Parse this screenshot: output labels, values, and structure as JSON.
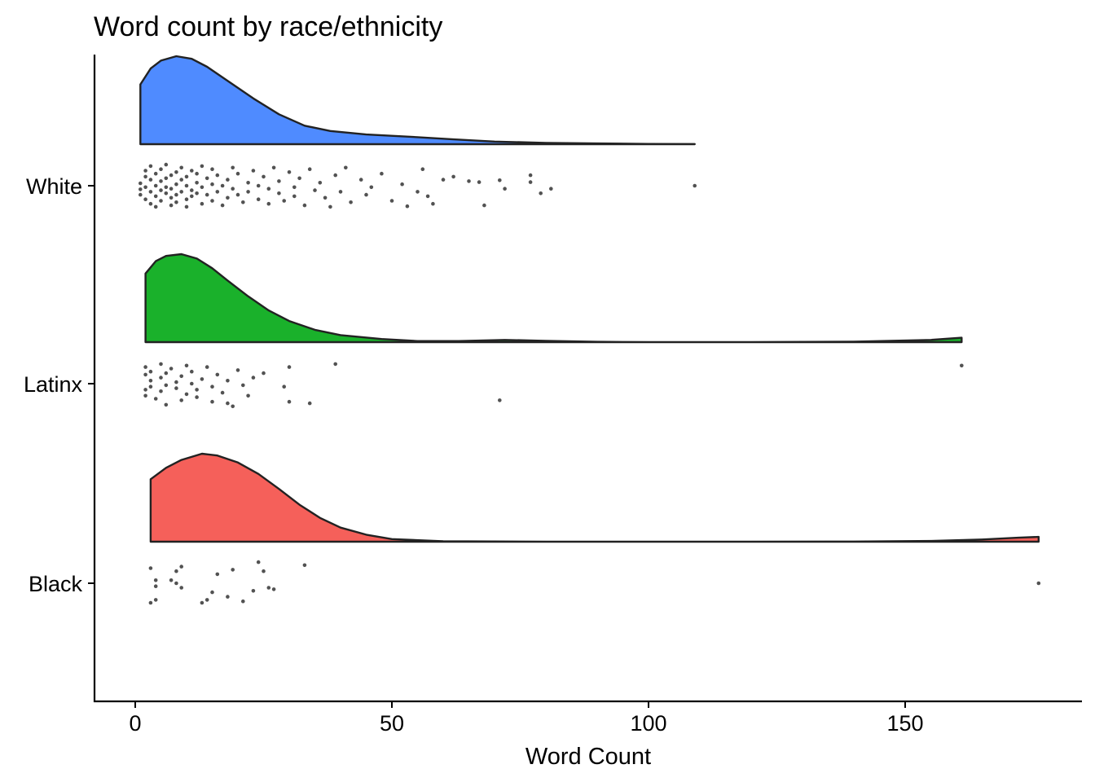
{
  "chart_data": {
    "type": "raincloud",
    "title": "Word count by race/ethnicity",
    "xlabel": "Word Count",
    "ylabel": "",
    "xlim": [
      -8,
      185
    ],
    "xticks": [
      0,
      50,
      100,
      150
    ],
    "tick_labels": [
      "0",
      "50",
      "100",
      "150"
    ],
    "categories": [
      "White",
      "Latinx",
      "Black"
    ],
    "colors": {
      "White": "#4F8BFF",
      "Latinx": "#1AB12B",
      "Black": "#F5605A"
    },
    "grid": false,
    "legend": "none",
    "density": {
      "White": {
        "x": [
          1,
          3,
          5,
          8,
          11,
          14,
          18,
          23,
          28,
          33,
          38,
          45,
          55,
          62,
          70,
          80,
          90,
          100,
          109
        ],
        "y": [
          0.68,
          0.86,
          0.95,
          1.0,
          0.97,
          0.88,
          0.72,
          0.52,
          0.34,
          0.21,
          0.15,
          0.11,
          0.08,
          0.055,
          0.03,
          0.015,
          0.008,
          0.003,
          0.002
        ]
      },
      "Latinx": {
        "x": [
          2,
          4,
          6,
          9,
          12,
          15,
          18,
          22,
          26,
          30,
          35,
          40,
          48,
          55,
          63,
          72,
          80,
          90,
          100,
          120,
          140,
          155,
          161
        ],
        "y": [
          0.78,
          0.92,
          0.98,
          1.0,
          0.95,
          0.84,
          0.7,
          0.52,
          0.36,
          0.24,
          0.14,
          0.08,
          0.035,
          0.012,
          0.012,
          0.025,
          0.015,
          0.004,
          0.0,
          0.0,
          0.005,
          0.025,
          0.05
        ]
      },
      "Black": {
        "x": [
          3,
          6,
          9,
          13,
          16,
          20,
          24,
          28,
          32,
          36,
          40,
          45,
          50,
          60,
          80,
          100,
          120,
          140,
          155,
          165,
          172,
          176
        ],
        "y": [
          0.71,
          0.84,
          0.93,
          1.0,
          0.98,
          0.9,
          0.77,
          0.6,
          0.42,
          0.27,
          0.16,
          0.08,
          0.03,
          0.005,
          0.0,
          0.0,
          0.0,
          0.002,
          0.008,
          0.025,
          0.045,
          0.055
        ]
      }
    },
    "points": {
      "White": [
        [
          1,
          0.12
        ],
        [
          1,
          -0.08
        ],
        [
          1,
          0.3
        ],
        [
          2,
          -0.3
        ],
        [
          2,
          0.05
        ],
        [
          2,
          -0.5
        ],
        [
          2,
          0.45
        ],
        [
          3,
          0.2
        ],
        [
          3,
          -0.2
        ],
        [
          3,
          0.6
        ],
        [
          3,
          -0.65
        ],
        [
          4,
          0.0
        ],
        [
          4,
          0.35
        ],
        [
          4,
          -0.4
        ],
        [
          4,
          0.7
        ],
        [
          5,
          0.15
        ],
        [
          5,
          -0.15
        ],
        [
          5,
          -0.55
        ],
        [
          5,
          0.5
        ],
        [
          6,
          0.25
        ],
        [
          6,
          -0.25
        ],
        [
          6,
          0.05
        ],
        [
          6,
          -0.7
        ],
        [
          7,
          0.4
        ],
        [
          7,
          -0.35
        ],
        [
          7,
          0.1
        ],
        [
          7,
          0.65
        ],
        [
          8,
          -0.05
        ],
        [
          8,
          0.3
        ],
        [
          8,
          -0.45
        ],
        [
          8,
          0.55
        ],
        [
          9,
          0.2
        ],
        [
          9,
          -0.2
        ],
        [
          9,
          -0.6
        ],
        [
          10,
          0.0
        ],
        [
          10,
          0.45
        ],
        [
          10,
          -0.3
        ],
        [
          10,
          0.7
        ],
        [
          11,
          0.15
        ],
        [
          11,
          -0.5
        ],
        [
          11,
          0.35
        ],
        [
          12,
          -0.1
        ],
        [
          12,
          0.25
        ],
        [
          12,
          -0.4
        ],
        [
          13,
          0.6
        ],
        [
          13,
          0.05
        ],
        [
          13,
          -0.65
        ],
        [
          14,
          0.3
        ],
        [
          14,
          -0.25
        ],
        [
          15,
          0.5
        ],
        [
          15,
          -0.05
        ],
        [
          15,
          -0.55
        ],
        [
          16,
          0.2
        ],
        [
          16,
          -0.35
        ],
        [
          17,
          0.65
        ],
        [
          17,
          0.0
        ],
        [
          18,
          -0.2
        ],
        [
          18,
          0.4
        ],
        [
          19,
          -0.6
        ],
        [
          19,
          0.1
        ],
        [
          20,
          0.3
        ],
        [
          20,
          -0.4
        ],
        [
          21,
          0.55
        ],
        [
          22,
          -0.1
        ],
        [
          22,
          0.2
        ],
        [
          23,
          -0.5
        ],
        [
          24,
          0.45
        ],
        [
          24,
          0.0
        ],
        [
          25,
          -0.3
        ],
        [
          26,
          0.6
        ],
        [
          26,
          0.1
        ],
        [
          27,
          -0.6
        ],
        [
          28,
          0.25
        ],
        [
          28,
          -0.15
        ],
        [
          29,
          0.5
        ],
        [
          30,
          -0.45
        ],
        [
          31,
          0.05
        ],
        [
          31,
          0.35
        ],
        [
          32,
          -0.25
        ],
        [
          33,
          0.65
        ],
        [
          34,
          -0.55
        ],
        [
          35,
          0.15
        ],
        [
          36,
          -0.1
        ],
        [
          37,
          0.4
        ],
        [
          38,
          0.7
        ],
        [
          39,
          -0.35
        ],
        [
          40,
          0.2
        ],
        [
          41,
          -0.6
        ],
        [
          42,
          0.55
        ],
        [
          44,
          -0.2
        ],
        [
          45,
          0.3
        ],
        [
          46,
          0.05
        ],
        [
          48,
          -0.4
        ],
        [
          50,
          0.5
        ],
        [
          52,
          -0.05
        ],
        [
          53,
          0.68
        ],
        [
          55,
          0.2
        ],
        [
          56,
          -0.55
        ],
        [
          57,
          0.35
        ],
        [
          58,
          0.6
        ],
        [
          60,
          -0.2
        ],
        [
          62,
          -0.3
        ],
        [
          65,
          -0.15
        ],
        [
          67,
          -0.12
        ],
        [
          68,
          0.65
        ],
        [
          71,
          -0.18
        ],
        [
          72,
          0.1
        ],
        [
          77,
          -0.35
        ],
        [
          77,
          -0.12
        ],
        [
          79,
          0.25
        ],
        [
          81,
          0.1
        ],
        [
          109,
          0.0
        ]
      ],
      "Latinx": [
        [
          2,
          0.4
        ],
        [
          2,
          0.2
        ],
        [
          2,
          -0.3
        ],
        [
          2,
          -0.55
        ],
        [
          3,
          0.1
        ],
        [
          3,
          -0.1
        ],
        [
          3,
          -0.4
        ],
        [
          4,
          0.5
        ],
        [
          5,
          0.25
        ],
        [
          5,
          -0.2
        ],
        [
          5,
          -0.65
        ],
        [
          6,
          0.05
        ],
        [
          6,
          -0.35
        ],
        [
          6,
          0.7
        ],
        [
          7,
          -0.5
        ],
        [
          8,
          0.15
        ],
        [
          8,
          -0.05
        ],
        [
          9,
          0.55
        ],
        [
          9,
          -0.25
        ],
        [
          10,
          -0.6
        ],
        [
          10,
          0.35
        ],
        [
          11,
          0.0
        ],
        [
          11,
          -0.4
        ],
        [
          12,
          0.45
        ],
        [
          12,
          0.2
        ],
        [
          13,
          -0.15
        ],
        [
          14,
          -0.55
        ],
        [
          15,
          0.6
        ],
        [
          15,
          0.1
        ],
        [
          16,
          -0.3
        ],
        [
          17,
          0.3
        ],
        [
          18,
          0.65
        ],
        [
          18,
          -0.1
        ],
        [
          19,
          0.75
        ],
        [
          20,
          -0.45
        ],
        [
          21,
          0.05
        ],
        [
          22,
          0.4
        ],
        [
          23,
          -0.2
        ],
        [
          25,
          -0.35
        ],
        [
          29,
          0.1
        ],
        [
          30,
          0.6
        ],
        [
          30,
          -0.55
        ],
        [
          34,
          0.65
        ],
        [
          39,
          -0.65
        ],
        [
          71,
          0.55
        ],
        [
          161,
          -0.6
        ]
      ],
      "Black": [
        [
          3,
          -0.5
        ],
        [
          3,
          0.65
        ],
        [
          4,
          -0.1
        ],
        [
          4,
          0.55
        ],
        [
          4,
          0.1
        ],
        [
          7,
          -0.1
        ],
        [
          8,
          0.0
        ],
        [
          8,
          -0.4
        ],
        [
          9,
          -0.55
        ],
        [
          9,
          0.15
        ],
        [
          13,
          0.65
        ],
        [
          14,
          0.55
        ],
        [
          15,
          0.3
        ],
        [
          16,
          -0.3
        ],
        [
          18,
          0.45
        ],
        [
          19,
          -0.45
        ],
        [
          21,
          0.6
        ],
        [
          23,
          0.25
        ],
        [
          24,
          -0.7
        ],
        [
          25,
          -0.4
        ],
        [
          26,
          0.15
        ],
        [
          27,
          0.2
        ],
        [
          33,
          -0.6
        ],
        [
          176,
          0.0
        ]
      ]
    }
  }
}
